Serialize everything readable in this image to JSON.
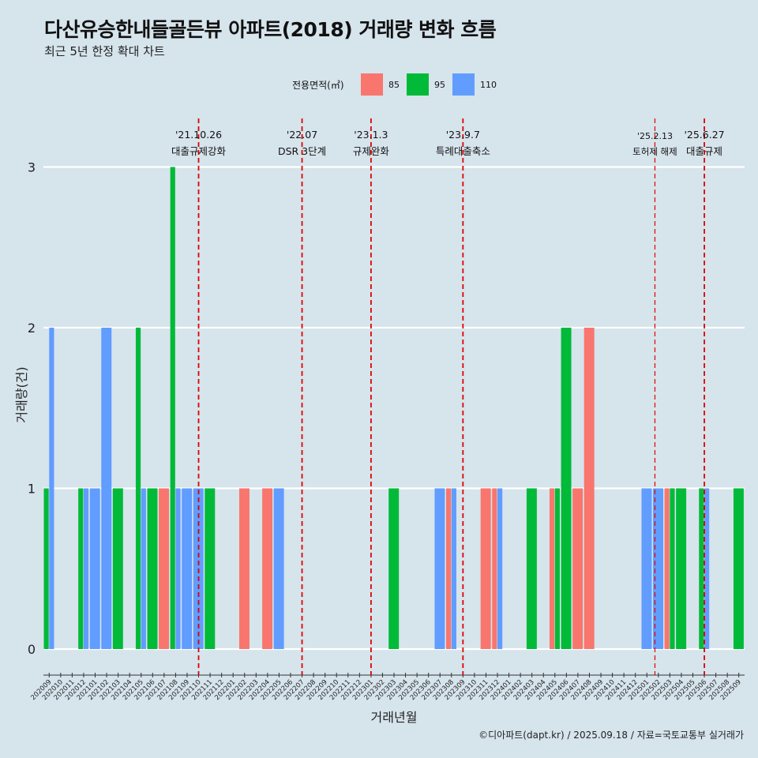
{
  "title": "다산유승한내들골든뷰 아파트(2018) 거래량 변화 흐름",
  "subtitle": "최근 5년 한정 확대 차트",
  "legend": {
    "title": "전용면적(㎡)",
    "items": [
      {
        "label": "85",
        "color": "#f8766d"
      },
      {
        "label": "95",
        "color": "#00ba38"
      },
      {
        "label": "110",
        "color": "#619cff"
      }
    ]
  },
  "caption": "©디아파트(dapt.kr) / 2025.09.18 / 자료=국토교통부 실거래가",
  "chart_data": {
    "type": "bar",
    "xlabel": "거래년월",
    "ylabel": "거래량(건)",
    "ylim": [
      0,
      3
    ],
    "yticks": [
      0,
      1,
      2,
      3
    ],
    "categories": [
      "202009",
      "202010",
      "202011",
      "202012",
      "202101",
      "202102",
      "202103",
      "202104",
      "202105",
      "202106",
      "202107",
      "202108",
      "202109",
      "202110",
      "202111",
      "202112",
      "202201",
      "202202",
      "202203",
      "202204",
      "202205",
      "202206",
      "202207",
      "202208",
      "202209",
      "202210",
      "202211",
      "202212",
      "202301",
      "202302",
      "202303",
      "202304",
      "202305",
      "202306",
      "202307",
      "202308",
      "202309",
      "202310",
      "202311",
      "202312",
      "202401",
      "202402",
      "202403",
      "202404",
      "202405",
      "202406",
      "202407",
      "202408",
      "202409",
      "202410",
      "202411",
      "202412",
      "202501",
      "202502",
      "202503",
      "202504",
      "202505",
      "202506",
      "202507",
      "202508",
      "202509"
    ],
    "series": [
      {
        "name": "85",
        "color": "#f8766d",
        "values": [
          0,
          0,
          0,
          0,
          0,
          0,
          0,
          0,
          0,
          0,
          1,
          0,
          0,
          0,
          0,
          0,
          0,
          1,
          0,
          1,
          0,
          0,
          0,
          0,
          0,
          0,
          0,
          0,
          0,
          0,
          0,
          0,
          0,
          0,
          0,
          1,
          0,
          0,
          1,
          1,
          0,
          0,
          0,
          0,
          1,
          0,
          1,
          2,
          0,
          0,
          0,
          0,
          0,
          0,
          1,
          0,
          0,
          0,
          0,
          0,
          0
        ]
      },
      {
        "name": "95",
        "color": "#00ba38",
        "values": [
          1,
          0,
          0,
          1,
          0,
          0,
          1,
          0,
          2,
          1,
          0,
          3,
          0,
          0,
          1,
          0,
          0,
          0,
          0,
          0,
          0,
          0,
          0,
          0,
          0,
          0,
          0,
          0,
          0,
          0,
          1,
          0,
          0,
          0,
          0,
          0,
          0,
          0,
          0,
          0,
          0,
          0,
          1,
          0,
          1,
          2,
          0,
          0,
          0,
          0,
          0,
          0,
          0,
          0,
          1,
          1,
          0,
          1,
          0,
          0,
          1
        ]
      },
      {
        "name": "110",
        "color": "#619cff",
        "values": [
          2,
          0,
          0,
          1,
          1,
          2,
          0,
          0,
          1,
          0,
          0,
          1,
          1,
          1,
          0,
          0,
          0,
          0,
          0,
          0,
          1,
          0,
          0,
          0,
          0,
          0,
          0,
          0,
          0,
          0,
          0,
          0,
          0,
          0,
          1,
          1,
          0,
          0,
          0,
          1,
          0,
          0,
          0,
          0,
          0,
          0,
          0,
          0,
          0,
          0,
          0,
          0,
          1,
          1,
          0,
          0,
          0,
          1,
          0,
          0,
          0
        ]
      }
    ],
    "events": [
      {
        "date": "'21.10.26",
        "label": "대출규제강화",
        "pos": 13.5
      },
      {
        "date": "'22.07",
        "label": "DSR 3단계",
        "pos": 22.5
      },
      {
        "date": "'23.1.3",
        "label": "규제완화",
        "pos": 28.5
      },
      {
        "date": "'23.9.7",
        "label": "특례대출축소",
        "pos": 36.5
      },
      {
        "date": "'25.2.13",
        "label": "토허제 해제",
        "pos": 53.2
      },
      {
        "date": "'25.6.27",
        "label": "대출규제",
        "pos": 57.5
      }
    ]
  }
}
